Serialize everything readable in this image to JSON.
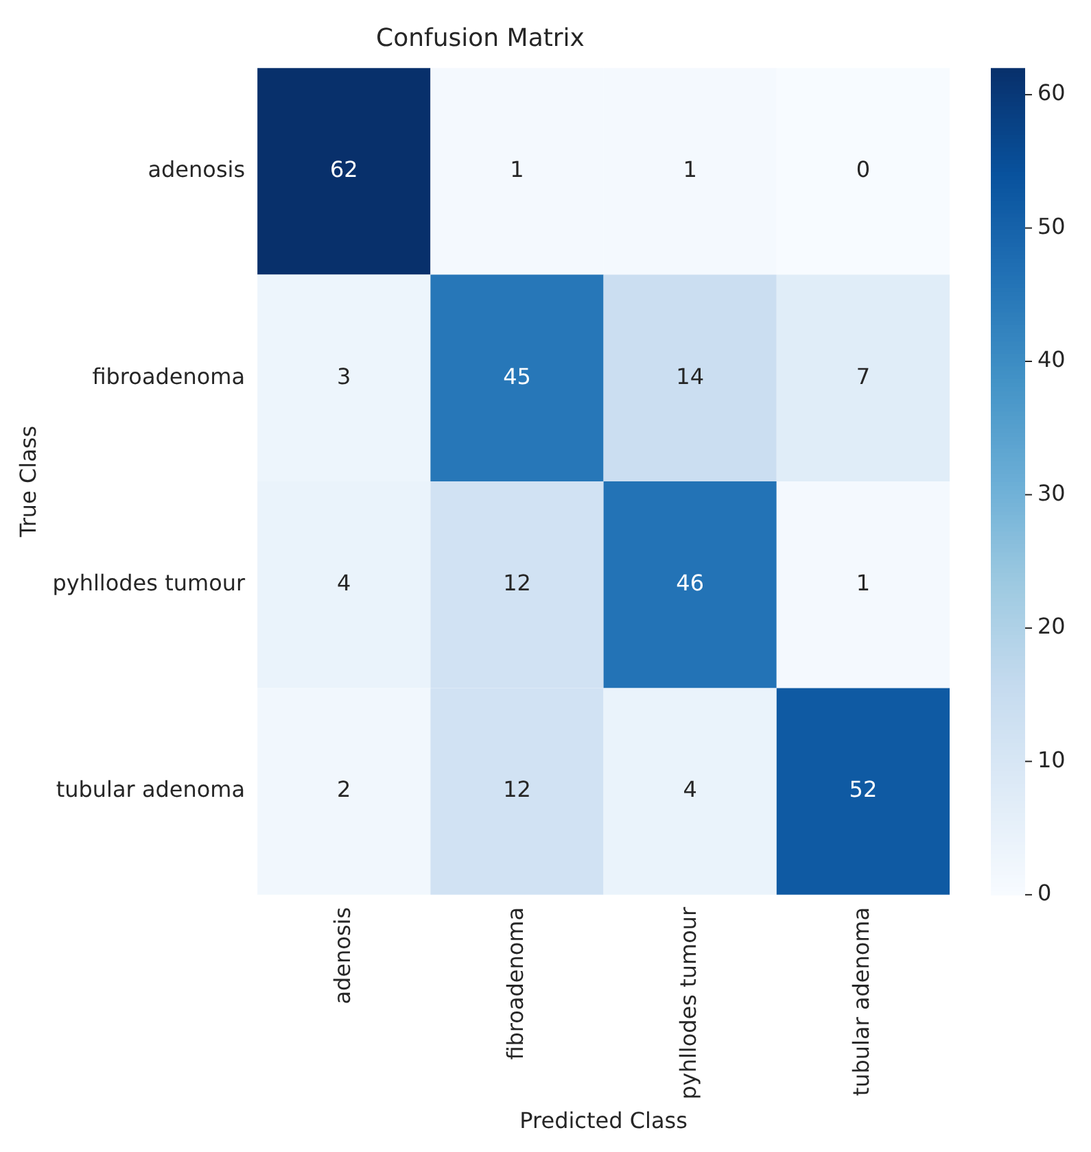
{
  "chart_data": {
    "type": "heatmap",
    "title": "Confusion Matrix",
    "xlabel": "Predicted Class",
    "ylabel": "True Class",
    "categories": [
      "adenosis",
      "fibroadenoma",
      "pyhllodes tumour",
      "tubular adenoma"
    ],
    "y_categories": [
      "adenosis",
      "fibroadenoma",
      "pyhllodes tumour",
      "tubular adenoma"
    ],
    "cells": [
      [
        62,
        1,
        1,
        0
      ],
      [
        3,
        45,
        14,
        7
      ],
      [
        4,
        12,
        46,
        1
      ],
      [
        2,
        12,
        4,
        52
      ]
    ],
    "clim": [
      0,
      62
    ],
    "cticks": [
      0,
      10,
      20,
      30,
      40,
      50,
      60
    ],
    "data_labels": true
  }
}
